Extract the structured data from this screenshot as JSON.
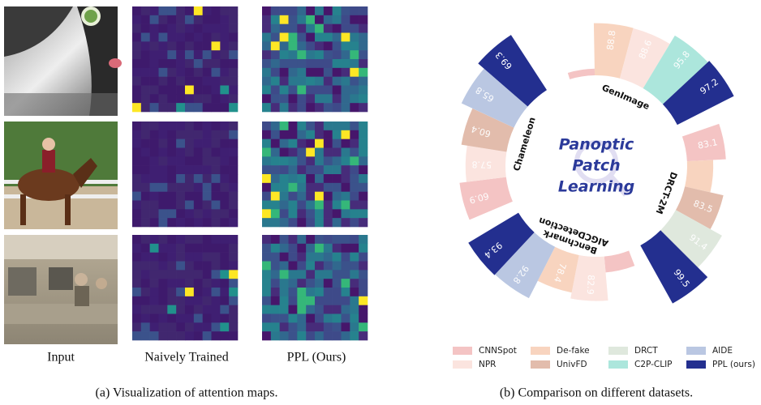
{
  "panel_a": {
    "columns": [
      "Input",
      "Naively Trained",
      "PPL (Ours)"
    ],
    "caption": "(a) Visualization of attention maps."
  },
  "chart_data": {
    "type": "radial-bar",
    "center_text": [
      "Panoptic",
      "Patch",
      "Learning"
    ],
    "legend": [
      {
        "name": "CNNSpot",
        "color": "#f4c4c4"
      },
      {
        "name": "NPR",
        "color": "#fbe4df"
      },
      {
        "name": "De-fake",
        "color": "#f8d4bf"
      },
      {
        "name": "UnivFD",
        "color": "#e2bcac"
      },
      {
        "name": "DRCT",
        "color": "#dfe8dd"
      },
      {
        "name": "C2P-CLIP",
        "color": "#ace6dc"
      },
      {
        "name": "AIDE",
        "color": "#bac7e2"
      },
      {
        "name": "PPL (ours)",
        "color": "#232f8f"
      }
    ],
    "groups": [
      {
        "name": [
          "GenImage"
        ],
        "methods": [
          "CNNSpot",
          "De-fake",
          "NPR",
          "C2P-CLIP",
          "PPL (ours)"
        ],
        "values": [
          55,
          88.8,
          88.6,
          95.8,
          97.2
        ],
        "rlim": [
          50,
          100
        ]
      },
      {
        "name": [
          "DRCT-2M"
        ],
        "methods": [
          "CNNSpot",
          "De-fake",
          "UnivFD",
          "DRCT",
          "PPL (ours)"
        ],
        "values": [
          83.1,
          75.5,
          83.5,
          91.4,
          99.5
        ],
        "rlim": [
          60,
          100
        ]
      },
      {
        "name": [
          "AIGCDetection",
          "Benchmark"
        ],
        "methods": [
          "CNNSpot",
          "NPR",
          "De-fake",
          "AIDE",
          "PPL (ours)"
        ],
        "values": [
          62,
          82.9,
          78.4,
          92.8,
          93.4
        ],
        "rlim": [
          50,
          100
        ]
      },
      {
        "name": [
          "Chameleon"
        ],
        "methods": [
          "CNNSpot",
          "NPR",
          "UnivFD",
          "AIDE",
          "PPL (ours)"
        ],
        "values": [
          60.9,
          57.8,
          60.4,
          65.8,
          69.3
        ],
        "rlim": [
          40,
          70
        ]
      }
    ],
    "caption": "(b) Comparison on different datasets."
  }
}
